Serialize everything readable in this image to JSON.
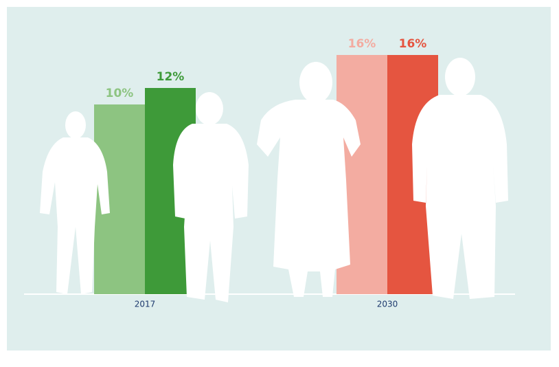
{
  "chart_data": {
    "type": "bar",
    "categories": [
      "2017",
      "2030"
    ],
    "series": [
      {
        "colors": [
          "#8dc481",
          "#f3aca1"
        ],
        "values": [
          10,
          16
        ],
        "value_labels": [
          "10%",
          "16%"
        ]
      },
      {
        "colors": [
          "#3e9a39",
          "#e55540"
        ],
        "values": [
          12,
          16
        ],
        "value_labels": [
          "12%",
          "16%"
        ]
      }
    ],
    "ylim": [
      -13,
      20
    ],
    "background": "#dfeeed"
  }
}
